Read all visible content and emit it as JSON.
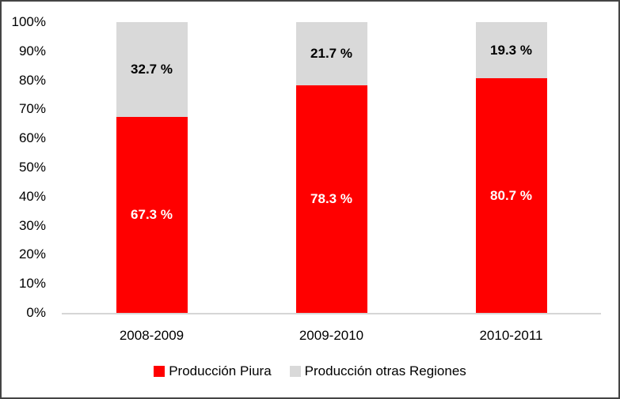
{
  "chart_data": {
    "type": "bar",
    "stacked": true,
    "orientation": "vertical",
    "title": "",
    "xlabel": "",
    "ylabel": "",
    "categories": [
      "2008-2009",
      "2009-2010",
      "2010-2011"
    ],
    "series": [
      {
        "name": "Producción Piura",
        "color": "#ff0000",
        "label_color": "#ffffff",
        "values": [
          67.3,
          78.3,
          80.7
        ],
        "labels": [
          "67.3 %",
          "78.3 %",
          "80.7 %"
        ]
      },
      {
        "name": "Producción otras Regiones",
        "color": "#d9d9d9",
        "label_color": "#000000",
        "values": [
          32.7,
          21.7,
          19.3
        ],
        "labels": [
          "32.7 %",
          "21.7 %",
          "19.3 %"
        ]
      }
    ],
    "ylim": [
      0,
      100
    ],
    "ytick_step": 10,
    "ytick_labels": [
      "0%",
      "10%",
      "20%",
      "30%",
      "40%",
      "50%",
      "60%",
      "70%",
      "80%",
      "90%",
      "100%"
    ],
    "grid": false,
    "legend_position": "bottom"
  },
  "colors": {
    "background": "#ffffff",
    "frame_border": "#444444",
    "axis_line": "#d6d6d6",
    "text": "#000000"
  }
}
